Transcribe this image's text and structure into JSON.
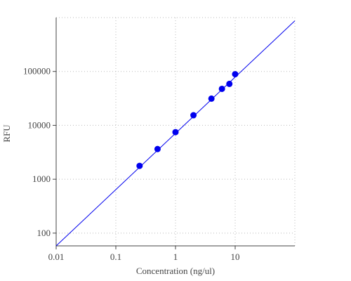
{
  "chart_data": {
    "type": "scatter",
    "x_label": "Concentration (ng/ul)",
    "y_label": "RFU",
    "log_x": true,
    "log_y": true,
    "grid": true,
    "xlim": [
      0.01,
      100
    ],
    "ylim": [
      58,
      1000000
    ],
    "xticks": [
      0.01,
      0.1,
      1,
      10
    ],
    "yticks": [
      100,
      1000,
      10000,
      100000
    ],
    "series": [
      {
        "color": "#0000ee",
        "x": [
          0.25,
          0.5,
          1,
          2,
          4,
          6,
          8,
          10
        ],
        "values": [
          1770,
          3630,
          7480,
          15400,
          31300,
          47600,
          58800,
          89000
        ]
      }
    ],
    "fit_line": {
      "color": "#0000ee",
      "x": [
        0.01,
        100
      ],
      "values": [
        58,
        870000
      ]
    }
  }
}
